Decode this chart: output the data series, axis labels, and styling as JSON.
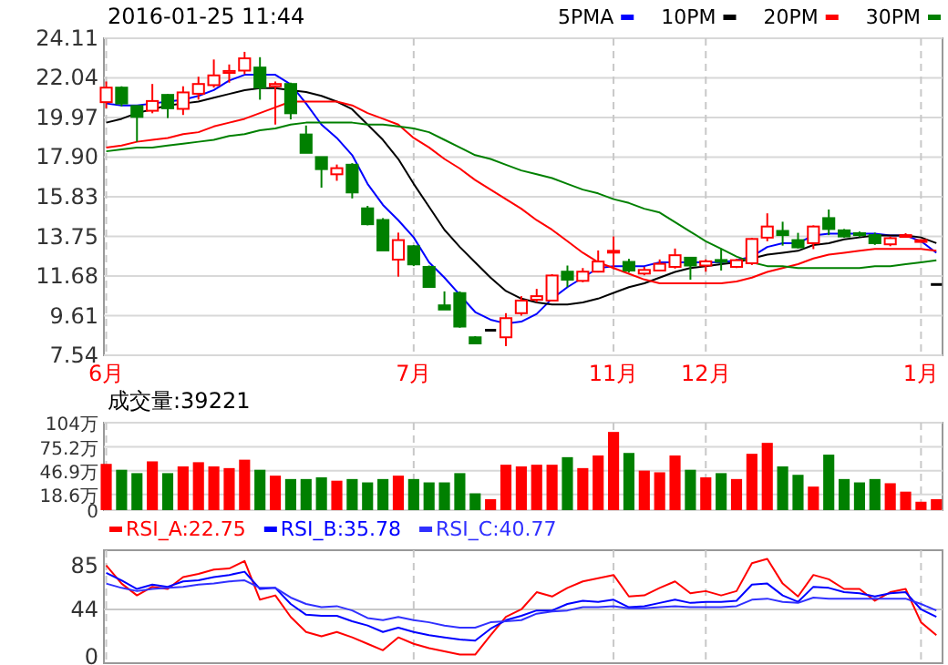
{
  "chart_data": [
    {
      "type": "candlestick",
      "title": "2016-01-25 11:44",
      "legend": "top right",
      "grid": true,
      "categories": [
        "6月",
        null,
        null,
        null,
        null,
        null,
        null,
        null,
        null,
        null,
        null,
        null,
        null,
        null,
        null,
        null,
        null,
        null,
        null,
        null,
        "7月",
        null,
        null,
        null,
        null,
        null,
        null,
        null,
        null,
        null,
        null,
        null,
        null,
        "11月",
        null,
        null,
        null,
        null,
        null,
        "12月",
        null,
        null,
        null,
        null,
        null,
        null,
        null,
        null,
        null,
        null,
        null,
        null,
        null,
        "1月",
        null
      ],
      "ylim": [
        7.54,
        24.11
      ],
      "yticks": [
        7.54,
        9.61,
        11.68,
        13.75,
        15.83,
        {
          "value": 17.9,
          "label": "17.90"
        },
        19.97,
        22.04,
        24.11
      ],
      "ohlc": [
        [
          20.77,
          21.85,
          20.45,
          21.53
        ],
        [
          21.53,
          21.6,
          20.55,
          20.7
        ],
        [
          20.57,
          20.6,
          18.7,
          20.0
        ],
        [
          20.32,
          21.72,
          20.19,
          20.83
        ],
        [
          21.15,
          21.2,
          19.94,
          20.45
        ],
        [
          20.42,
          21.6,
          20.1,
          21.28
        ],
        [
          21.21,
          22.1,
          20.9,
          21.72
        ],
        [
          21.66,
          23.0,
          21.53,
          22.17
        ],
        [
          22.3,
          22.74,
          21.79,
          22.4
        ],
        [
          22.42,
          23.4,
          22.23,
          23.06
        ],
        [
          22.58,
          23.12,
          20.9,
          21.53
        ],
        [
          21.6,
          21.85,
          19.6,
          21.72
        ],
        [
          21.72,
          21.79,
          19.87,
          20.19
        ],
        [
          19.08,
          19.55,
          18.12,
          18.12
        ],
        [
          17.9,
          17.9,
          16.3,
          17.27
        ],
        [
          17.0,
          17.51,
          16.66,
          17.32
        ],
        [
          17.5,
          17.58,
          15.74,
          16.05
        ],
        [
          15.22,
          15.35,
          14.33,
          14.39
        ],
        [
          14.61,
          14.71,
          13.02,
          13.02
        ],
        [
          12.54,
          13.95,
          11.65,
          13.56
        ],
        [
          13.24,
          13.3,
          12.2,
          12.29
        ],
        [
          12.16,
          12.23,
          11.11,
          11.11
        ],
        [
          10.15,
          10.88,
          9.93,
          9.93
        ],
        [
          10.79,
          10.88,
          8.98,
          9.04
        ],
        [
          8.48,
          8.54,
          8.16,
          8.16
        ],
        [
          8.85,
          8.88,
          8.82,
          8.85
        ],
        [
          8.48,
          9.74,
          8.02,
          9.48
        ],
        [
          9.74,
          10.63,
          9.61,
          10.4
        ],
        [
          10.44,
          11.01,
          10.31,
          10.63
        ],
        [
          10.4,
          11.78,
          10.4,
          11.71
        ],
        [
          11.91,
          12.23,
          11.1,
          11.49
        ],
        [
          11.43,
          12.1,
          11.36,
          11.91
        ],
        [
          11.91,
          13.02,
          11.87,
          12.44
        ],
        [
          12.94,
          13.75,
          12.04,
          13.0
        ],
        [
          12.42,
          12.58,
          11.87,
          11.97
        ],
        [
          11.81,
          12.16,
          11.72,
          12.0
        ],
        [
          11.97,
          12.55,
          11.97,
          12.32
        ],
        [
          12.16,
          13.12,
          12.07,
          12.77
        ],
        [
          12.64,
          12.67,
          11.49,
          12.23
        ],
        [
          12.23,
          12.55,
          11.91,
          12.45
        ],
        [
          12.52,
          13.12,
          11.97,
          12.46
        ],
        [
          12.16,
          12.58,
          12.1,
          12.51
        ],
        [
          12.35,
          13.68,
          12.26,
          13.62
        ],
        [
          13.69,
          14.96,
          13.5,
          14.27
        ],
        [
          14.04,
          14.52,
          13.27,
          13.82
        ],
        [
          13.56,
          13.94,
          13.12,
          13.18
        ],
        [
          13.4,
          14.33,
          13.09,
          14.27
        ],
        [
          14.71,
          15.16,
          13.82,
          14.14
        ],
        [
          14.07,
          14.14,
          13.69,
          13.75
        ],
        [
          13.92,
          14.01,
          13.72,
          13.82
        ],
        [
          13.82,
          13.95,
          13.31,
          13.4
        ],
        [
          13.34,
          13.75,
          13.24,
          13.66
        ],
        [
          13.75,
          13.92,
          13.69,
          13.82
        ],
        [
          13.5,
          13.6,
          13.45,
          13.56
        ],
        [
          11.24,
          11.24,
          11.24,
          11.24
        ]
      ],
      "colors": [
        "#ff0000",
        "#008000",
        "#008000",
        "#ff0000",
        "#008000",
        "#ff0000",
        "#ff0000",
        "#ff0000",
        "#ff0000",
        "#ff0000",
        "#008000",
        "#ff0000",
        "#008000",
        "#008000",
        "#008000",
        "#ff0000",
        "#008000",
        "#008000",
        "#008000",
        "#ff0000",
        "#008000",
        "#008000",
        "#008000",
        "#008000",
        "#008000",
        "#000000",
        "#ff0000",
        "#ff0000",
        "#ff0000",
        "#ff0000",
        "#008000",
        "#ff0000",
        "#ff0000",
        "#ff0000",
        "#008000",
        "#ff0000",
        "#ff0000",
        "#ff0000",
        "#008000",
        "#ff0000",
        "#008000",
        "#ff0000",
        "#ff0000",
        "#ff0000",
        "#008000",
        "#008000",
        "#ff0000",
        "#008000",
        "#008000",
        "#008000",
        "#008000",
        "#ff0000",
        "#ff0000",
        "#ff0000",
        "#000000"
      ],
      "series": [
        {
          "type": "line",
          "name": "5PMA",
          "color": "#0000ff",
          "values": [
            20.7,
            20.6,
            20.6,
            20.7,
            20.8,
            20.9,
            21.1,
            21.4,
            21.9,
            22.2,
            22.2,
            22.2,
            21.7,
            20.7,
            19.6,
            18.9,
            18.0,
            16.5,
            15.4,
            14.6,
            13.7,
            12.4,
            11.6,
            10.7,
            9.8,
            9.4,
            9.2,
            9.3,
            9.7,
            10.5,
            11.1,
            11.6,
            12.1,
            12.2,
            12.2,
            12.2,
            12.4,
            12.4,
            12.4,
            12.4,
            12.4,
            12.5,
            12.7,
            13.2,
            13.4,
            13.4,
            13.8,
            13.9,
            13.9,
            13.9,
            13.9,
            13.8,
            13.8,
            13.5,
            12.9
          ]
        },
        {
          "type": "line",
          "name": "10PM",
          "color": "#000000",
          "values": [
            19.7,
            19.9,
            20.2,
            20.4,
            20.6,
            20.7,
            20.8,
            21.0,
            21.2,
            21.4,
            21.5,
            21.5,
            21.4,
            21.3,
            21.1,
            20.8,
            20.4,
            19.6,
            18.8,
            17.8,
            16.5,
            15.3,
            14.1,
            13.2,
            12.4,
            11.6,
            10.9,
            10.5,
            10.3,
            10.2,
            10.2,
            10.3,
            10.5,
            10.8,
            11.1,
            11.3,
            11.6,
            11.9,
            12.1,
            12.2,
            12.3,
            12.4,
            12.6,
            12.8,
            12.9,
            13.0,
            13.3,
            13.4,
            13.6,
            13.7,
            13.8,
            13.8,
            13.8,
            13.7,
            13.4
          ]
        },
        {
          "type": "line",
          "name": "20PM",
          "color": "#ff0000",
          "values": [
            18.4,
            18.5,
            18.7,
            18.8,
            18.9,
            19.1,
            19.2,
            19.5,
            19.7,
            19.9,
            20.2,
            20.5,
            20.8,
            20.8,
            20.8,
            20.8,
            20.6,
            20.2,
            19.9,
            19.6,
            18.9,
            18.4,
            17.8,
            17.3,
            16.7,
            16.2,
            15.7,
            15.2,
            14.6,
            14.1,
            13.5,
            12.9,
            12.4,
            12.1,
            11.8,
            11.5,
            11.3,
            11.3,
            11.3,
            11.3,
            11.3,
            11.4,
            11.6,
            11.9,
            12.1,
            12.3,
            12.6,
            12.8,
            12.9,
            13.0,
            13.1,
            13.1,
            13.1,
            13.1,
            13.0
          ]
        },
        {
          "type": "line",
          "name": "30PM",
          "color": "#008000",
          "values": [
            18.2,
            18.3,
            18.4,
            18.4,
            18.5,
            18.6,
            18.7,
            18.8,
            19.0,
            19.1,
            19.3,
            19.4,
            19.6,
            19.7,
            19.7,
            19.7,
            19.7,
            19.6,
            19.6,
            19.5,
            19.4,
            19.2,
            18.8,
            18.4,
            18.0,
            17.8,
            17.5,
            17.2,
            17.0,
            16.8,
            16.5,
            16.2,
            16.0,
            15.7,
            15.5,
            15.2,
            15.0,
            14.5,
            14.0,
            13.5,
            13.1,
            12.7,
            12.4,
            12.2,
            12.2,
            12.1,
            12.1,
            12.1,
            12.1,
            12.1,
            12.2,
            12.2,
            12.3,
            12.4,
            12.5
          ]
        }
      ]
    },
    {
      "type": "bar",
      "title": "成交量:39221",
      "grid": true,
      "tick_labels": "y",
      "categories": [
        null,
        null,
        null,
        null,
        null,
        null,
        null,
        null,
        null,
        null,
        null,
        null,
        null,
        null,
        null,
        null,
        null,
        null,
        null,
        null,
        null,
        null,
        null,
        null,
        null,
        null,
        null,
        null,
        null,
        null,
        null,
        null,
        null,
        null,
        null,
        null,
        null,
        null,
        null,
        null,
        null,
        null,
        null,
        null,
        null,
        null,
        null,
        null,
        null,
        null,
        null,
        null,
        null,
        null,
        null
      ],
      "ylim": [
        0,
        104
      ],
      "yticks": [
        0,
        {
          "value": 18.6,
          "label": "18.6万"
        },
        {
          "value": 46.9,
          "label": "46.9万"
        },
        {
          "value": 75.2,
          "label": "75.2万"
        },
        {
          "value": 104,
          "label": "104万"
        }
      ],
      "values": [
        55,
        48,
        44,
        58,
        44,
        52,
        57,
        52,
        50,
        60,
        48,
        41,
        37,
        37,
        39,
        35,
        37,
        33,
        37,
        41,
        37,
        33,
        33,
        44,
        20,
        13,
        54,
        52,
        54,
        54,
        63,
        50,
        65,
        93,
        68,
        47,
        45,
        65,
        48,
        39,
        44,
        37,
        67,
        80,
        52,
        42,
        28,
        66,
        37,
        33,
        37,
        32,
        22,
        10,
        13
      ],
      "colors": [
        "#ff0000",
        "#008000",
        "#008000",
        "#ff0000",
        "#008000",
        "#ff0000",
        "#ff0000",
        "#ff0000",
        "#ff0000",
        "#ff0000",
        "#008000",
        "#ff0000",
        "#008000",
        "#008000",
        "#008000",
        "#ff0000",
        "#008000",
        "#008000",
        "#008000",
        "#ff0000",
        "#008000",
        "#008000",
        "#008000",
        "#008000",
        "#008000",
        "#ff0000",
        "#ff0000",
        "#ff0000",
        "#ff0000",
        "#ff0000",
        "#008000",
        "#ff0000",
        "#ff0000",
        "#ff0000",
        "#008000",
        "#ff0000",
        "#ff0000",
        "#ff0000",
        "#008000",
        "#ff0000",
        "#008000",
        "#ff0000",
        "#ff0000",
        "#ff0000",
        "#008000",
        "#008000",
        "#ff0000",
        "#008000",
        "#008000",
        "#008000",
        "#008000",
        "#ff0000",
        "#ff0000",
        "#ff0000",
        "#ff0000"
      ]
    },
    {
      "type": "line",
      "legend": "top left",
      "grid": "x",
      "tick_labels": "y",
      "categories": [
        null,
        null,
        null,
        null,
        null,
        null,
        null,
        null,
        null,
        null,
        null,
        null,
        null,
        null,
        null,
        null,
        null,
        null,
        null,
        null,
        null,
        null,
        null,
        null,
        null,
        null,
        null,
        null,
        null,
        null,
        null,
        null,
        null,
        null,
        null,
        null,
        null,
        null,
        null,
        null,
        null,
        null,
        null,
        null,
        null,
        null,
        null,
        null,
        null,
        null,
        null,
        null,
        null,
        null,
        null
      ],
      "ylim": [
        -6,
        99
      ],
      "yticks": [
        0,
        44,
        85
      ],
      "ref_lines": [
        {
          "axis": "y",
          "value": 44,
          "color": "#c8c8c8"
        }
      ],
      "series": [
        {
          "name": "RSI_A:22.75",
          "color": "#ff0000",
          "values": [
            85,
            68,
            57,
            65,
            63,
            74,
            77,
            81,
            82,
            89,
            53,
            57,
            37,
            23,
            19,
            23,
            18,
            12,
            6,
            18,
            12,
            8,
            5,
            2,
            2,
            20,
            37,
            44,
            60,
            56,
            64,
            70,
            73,
            76,
            56,
            57,
            64,
            70,
            59,
            61,
            57,
            61,
            87,
            91,
            68,
            56,
            76,
            72,
            63,
            63,
            52,
            60,
            63,
            32,
            20
          ]
        },
        {
          "name": "RSI_B:35.78",
          "color": "#0000ff",
          "values": [
            78,
            71,
            63,
            67,
            65,
            70,
            71,
            74,
            76,
            79,
            63,
            64,
            49,
            39,
            38,
            38,
            33,
            29,
            23,
            27,
            23,
            20,
            18,
            16,
            15,
            26,
            34,
            38,
            43,
            43,
            49,
            52,
            51,
            53,
            46,
            47,
            50,
            53,
            50,
            51,
            51,
            52,
            67,
            68,
            57,
            51,
            65,
            64,
            60,
            59,
            56,
            59,
            60,
            44,
            37
          ]
        },
        {
          "name": "RSI_C:40.77",
          "color": "#3030ff",
          "values": [
            68,
            64,
            61,
            63,
            64,
            65,
            67,
            68,
            70,
            71,
            64,
            64,
            55,
            49,
            46,
            47,
            43,
            36,
            34,
            37,
            34,
            32,
            29,
            27,
            27,
            32,
            33,
            34,
            40,
            42,
            43,
            46,
            46,
            47,
            45,
            45,
            46,
            47,
            46,
            46,
            46,
            47,
            53,
            54,
            51,
            50,
            55,
            54,
            54,
            54,
            54,
            54,
            54,
            49,
            43
          ]
        }
      ]
    }
  ]
}
